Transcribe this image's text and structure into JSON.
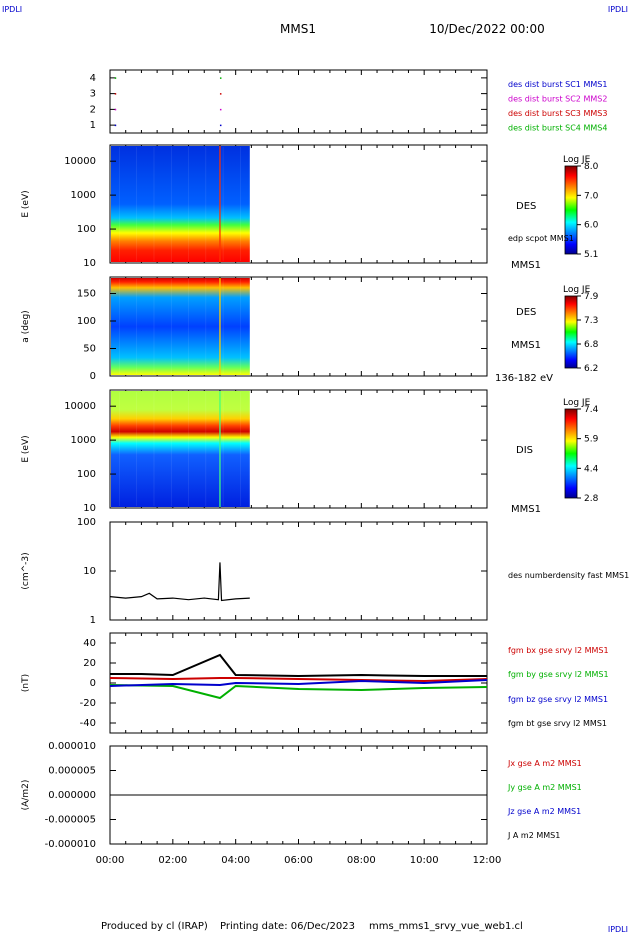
{
  "corner_logo": "IPDLI",
  "header": {
    "title": "MMS1",
    "date": "10/Dec/2022 00:00"
  },
  "footer": {
    "producer": "Produced by cl (IRAP)",
    "printing": "Printing date: 06/Dec/2023",
    "product": "mms_mms1_srvy_vue_web1.cl"
  },
  "time_axis": {
    "ticks": [
      "00:00",
      "02:00",
      "04:00",
      "06:00",
      "08:00",
      "10:00",
      "12:00"
    ],
    "range_hours": [
      0,
      12
    ]
  },
  "colors": {
    "blue": "#0000cc",
    "magenta": "#cc00cc",
    "red": "#cc0000",
    "green": "#00b000",
    "black": "#000000"
  },
  "chart_data": [
    {
      "type": "scatter",
      "panel": "burst-availability",
      "ylim": [
        0.5,
        4.5
      ],
      "y_ticks": [
        "1",
        "2",
        "3",
        "4"
      ],
      "series": [
        {
          "name": "des dist burst SC1 MMS1",
          "color": "#0000cc",
          "y": 1,
          "x_hours": [
            0.15,
            3.5
          ]
        },
        {
          "name": "des dist burst SC2 MMS2",
          "color": "#cc00cc",
          "y": 2,
          "x_hours": [
            0.15,
            3.5
          ]
        },
        {
          "name": "des dist burst SC3 MMS3",
          "color": "#cc0000",
          "y": 3,
          "x_hours": [
            0.15,
            3.5
          ]
        },
        {
          "name": "des dist burst SC4 MMS4",
          "color": "#00b000",
          "y": 4,
          "x_hours": [
            0.15,
            3.5
          ]
        }
      ]
    },
    {
      "type": "heatmap",
      "panel": "des-energy-spectrogram",
      "ylabel": "E (eV)",
      "ylim": [
        10,
        30000
      ],
      "y_scale": "log",
      "y_ticks": [
        "10",
        "100",
        "1000",
        "10000"
      ],
      "x_extent_hours": [
        0,
        4.45
      ],
      "labels": [
        "DES",
        "edp scpot MMS1",
        "MMS1"
      ],
      "colorbar": {
        "title": "Log JE",
        "ticks": [
          "8.0",
          "7.0",
          "6.0",
          "5.1"
        ],
        "range": [
          5.1,
          8.0
        ]
      }
    },
    {
      "type": "heatmap",
      "panel": "des-pitch-angle",
      "ylabel": "a (deg)",
      "ylim": [
        0,
        180
      ],
      "y_ticks": [
        "0",
        "50",
        "100",
        "150"
      ],
      "x_extent_hours": [
        0,
        4.45
      ],
      "labels": [
        "DES",
        "MMS1",
        "136-182 eV"
      ],
      "colorbar": {
        "title": "Log JE",
        "ticks": [
          "7.9",
          "7.3",
          "6.8",
          "6.2"
        ],
        "range": [
          6.2,
          7.9
        ]
      }
    },
    {
      "type": "heatmap",
      "panel": "dis-energy-spectrogram",
      "ylabel": "E (eV)",
      "ylim": [
        10,
        30000
      ],
      "y_scale": "log",
      "y_ticks": [
        "10",
        "100",
        "1000",
        "10000"
      ],
      "x_extent_hours": [
        0,
        4.45
      ],
      "labels": [
        "DIS",
        "MMS1"
      ],
      "colorbar": {
        "title": "Log JE",
        "ticks": [
          "7.4",
          "5.9",
          "4.4",
          "2.8"
        ],
        "range": [
          2.8,
          7.4
        ]
      }
    },
    {
      "type": "line",
      "panel": "electron-density",
      "ylabel": "(cm^-3)",
      "ylim": [
        1,
        100
      ],
      "y_scale": "log",
      "y_ticks": [
        "1",
        "10",
        "100"
      ],
      "series": [
        {
          "name": "des numberdensity fast MMS1",
          "color": "#000000",
          "x_hours": [
            0,
            0.5,
            1.0,
            1.25,
            1.5,
            2.0,
            2.5,
            3.0,
            3.45,
            3.5,
            3.55,
            4.0,
            4.45
          ],
          "values": [
            3.0,
            2.8,
            3.0,
            3.5,
            2.7,
            2.8,
            2.6,
            2.8,
            2.6,
            15.0,
            2.5,
            2.7,
            2.8
          ]
        }
      ]
    },
    {
      "type": "line",
      "panel": "magnetic-field",
      "ylabel": "(nT)",
      "ylim": [
        -50,
        50
      ],
      "y_ticks": [
        "-40",
        "-20",
        "0",
        "20",
        "40"
      ],
      "series": [
        {
          "name": "fgm bx gse srvy l2 MMS1",
          "color": "#cc0000",
          "x_hours": [
            0,
            2,
            3.5,
            4,
            6,
            8,
            10,
            12
          ],
          "values": [
            5,
            4,
            5,
            5,
            4,
            3,
            2,
            4
          ]
        },
        {
          "name": "fgm by gse srvy l2 MMS1",
          "color": "#00b000",
          "x_hours": [
            0,
            2,
            3.5,
            4,
            6,
            8,
            10,
            12
          ],
          "values": [
            -2,
            -3,
            -15,
            -3,
            -6,
            -7,
            -5,
            -4
          ]
        },
        {
          "name": "fgm bz gse srvy l2 MMS1",
          "color": "#0000cc",
          "x_hours": [
            0,
            2,
            3.5,
            4,
            6,
            8,
            10,
            12
          ],
          "values": [
            -3,
            -1,
            -2,
            0,
            -1,
            2,
            0,
            3
          ]
        },
        {
          "name": "fgm bt gse srvy l2 MMS1",
          "color": "#000000",
          "x_hours": [
            0,
            1,
            2,
            3.5,
            4,
            6,
            8,
            10,
            12
          ],
          "values": [
            9,
            9,
            8,
            28,
            8,
            7,
            8,
            7,
            7
          ]
        }
      ]
    },
    {
      "type": "line",
      "panel": "current-density",
      "ylabel": "(A/m2)",
      "ylim": [
        -1e-05,
        1e-05
      ],
      "y_ticks": [
        "-0.000010",
        "-0.000005",
        "0.000000",
        "0.000005",
        "0.000010"
      ],
      "series": [
        {
          "name": "Jx gse A m2 MMS1",
          "color": "#cc0000",
          "x_hours": [
            0,
            12
          ],
          "values": [
            0,
            0
          ]
        },
        {
          "name": "Jy gse A m2 MMS1",
          "color": "#00b000",
          "x_hours": [
            0,
            12
          ],
          "values": [
            0,
            0
          ]
        },
        {
          "name": "Jz gse A m2 MMS1",
          "color": "#0000cc",
          "x_hours": [
            0,
            12
          ],
          "values": [
            0,
            0
          ]
        },
        {
          "name": "J A m2 MMS1",
          "color": "#000000",
          "x_hours": [
            0,
            12
          ],
          "values": [
            0,
            0
          ]
        }
      ]
    }
  ]
}
